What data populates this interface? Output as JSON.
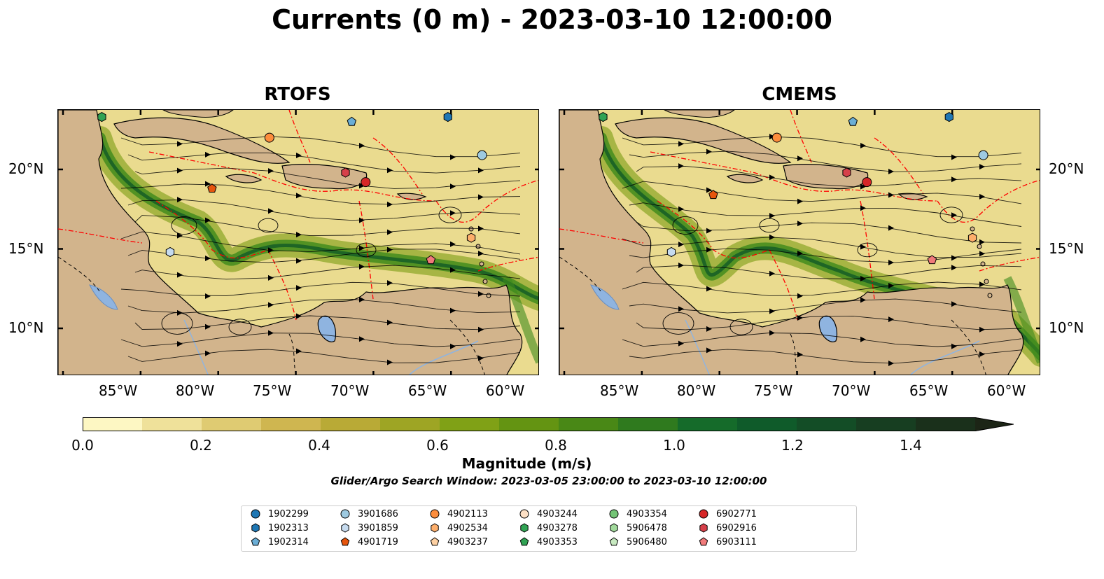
{
  "title": "Currents (0 m) - 2023-03-10 12:00:00",
  "panels": [
    {
      "title": "RTOFS"
    },
    {
      "title": "CMEMS"
    }
  ],
  "lon_ticks": [
    "85°W",
    "80°W",
    "75°W",
    "70°W",
    "65°W",
    "60°W"
  ],
  "lat_ticks": [
    "20°N",
    "15°N",
    "10°N"
  ],
  "colorbar": {
    "label": "Magnitude (m/s)",
    "ticks": [
      "0.0",
      "0.2",
      "0.4",
      "0.6",
      "0.8",
      "1.0",
      "1.2",
      "1.4"
    ],
    "colors": [
      "#fdf7c3",
      "#efe19a",
      "#dfcb72",
      "#cfb650",
      "#b9aa36",
      "#9ea524",
      "#80a116",
      "#649412",
      "#498816",
      "#2f7a1e",
      "#156b2a",
      "#0f5b2a",
      "#134d26",
      "#173e21",
      "#1a301b",
      "#1c2516"
    ]
  },
  "search_window": "Glider/Argo Search Window: 2023-03-05 23:00:00 to 2023-03-10 12:00:00",
  "legend": [
    {
      "id": "1902299",
      "marker": "circle",
      "color": "#1f77b4"
    },
    {
      "id": "1902313",
      "marker": "hexagon",
      "color": "#1f77b4"
    },
    {
      "id": "1902314",
      "marker": "pentagon",
      "color": "#6baed6"
    },
    {
      "id": "3901686",
      "marker": "circle",
      "color": "#9ecae1"
    },
    {
      "id": "3901859",
      "marker": "hexagon",
      "color": "#c6dbef"
    },
    {
      "id": "4901719",
      "marker": "pentagon",
      "color": "#e6550d"
    },
    {
      "id": "4902113",
      "marker": "circle",
      "color": "#fd8d3c"
    },
    {
      "id": "4902534",
      "marker": "hexagon",
      "color": "#fdae6b"
    },
    {
      "id": "4903237",
      "marker": "pentagon",
      "color": "#fdd0a2"
    },
    {
      "id": "4903244",
      "marker": "circle",
      "color": "#fde0c5"
    },
    {
      "id": "4903278",
      "marker": "hexagon",
      "color": "#31a354"
    },
    {
      "id": "4903353",
      "marker": "pentagon",
      "color": "#31a354"
    },
    {
      "id": "4903354",
      "marker": "circle",
      "color": "#74c476"
    },
    {
      "id": "5906478",
      "marker": "hexagon",
      "color": "#a1d99b"
    },
    {
      "id": "5906480",
      "marker": "pentagon",
      "color": "#c7e9c0"
    },
    {
      "id": "6902771",
      "marker": "circle",
      "color": "#d62728"
    },
    {
      "id": "6902916",
      "marker": "hexagon",
      "color": "#d6404a"
    },
    {
      "id": "6903111",
      "marker": "pentagon",
      "color": "#f07a7a"
    }
  ],
  "colors": {
    "land": "#d2b48c",
    "lake": "#8fb4e0",
    "eez": "#ff0000"
  }
}
